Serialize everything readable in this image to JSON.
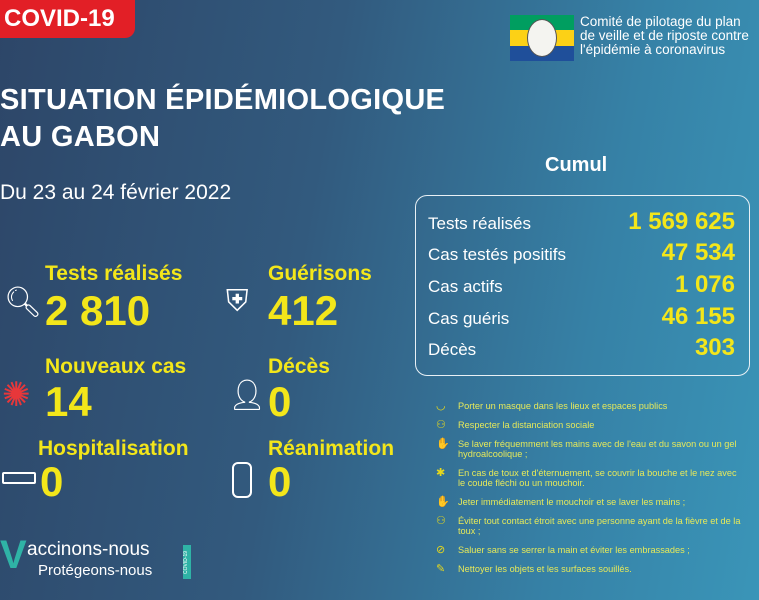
{
  "badge": "COVID-19",
  "org": {
    "text": "Comité de pilotage du plan\nde veille et de riposte contre\nl'épidémie à coronavirus",
    "flag_colors": [
      "#009e60",
      "#fcd116",
      "#3a75c4"
    ]
  },
  "title": {
    "line1": "SITUATION ÉPIDÉMIOLOGIQUE",
    "line2": "AU GABON"
  },
  "date": "Du 23 au 24 février 2022",
  "stats": [
    {
      "label": "Tests réalisés",
      "value": "2 810",
      "icon": "magnifier-icon"
    },
    {
      "label": "Guérisons",
      "value": "412",
      "icon": "shield-cross-icon"
    },
    {
      "label": "Nouveaux cas",
      "value": "14",
      "icon": "virus-icon"
    },
    {
      "label": "Décès",
      "value": "0",
      "icon": "person-cross-icon"
    },
    {
      "label": "Hospitalisation",
      "value": "0",
      "icon": "hospital-bed-icon"
    },
    {
      "label": "Réanimation",
      "value": "0",
      "icon": "oxygen-tank-icon"
    }
  ],
  "cumul": {
    "title": "Cumul",
    "rows": [
      {
        "label": "Tests réalisés",
        "value": "1 569 625"
      },
      {
        "label": "Cas testés positifs",
        "value": "47 534"
      },
      {
        "label": "Cas actifs",
        "value": "1 076"
      },
      {
        "label": "Cas guéris",
        "value": "46 155"
      },
      {
        "label": "Décès",
        "value": "303"
      }
    ]
  },
  "guidelines": [
    "Porter un masque dans les lieux et espaces publics",
    "Respecter la distanciation sociale",
    "Se laver fréquemment les mains avec de l'eau et du savon ou un gel hydroalcoolique ;",
    "En cas de toux et d'éternuement, se couvrir la bouche et le nez avec le coude fléchi ou un mouchoir.",
    "Jeter immédiatement le mouchoir et se laver les mains ;",
    "Éviter tout contact étroit avec une personne ayant de la fièvre et de la toux ;",
    "Saluer sans se serrer la main et éviter les embrassades ;",
    "Nettoyer les objets et les surfaces souillés."
  ],
  "vaccination": {
    "line1": "accinons-nous",
    "line2": "Protégeons-nous",
    "tag": "COVID-19"
  },
  "colors": {
    "accent": "#f3e61a",
    "badge": "#e21f26"
  }
}
